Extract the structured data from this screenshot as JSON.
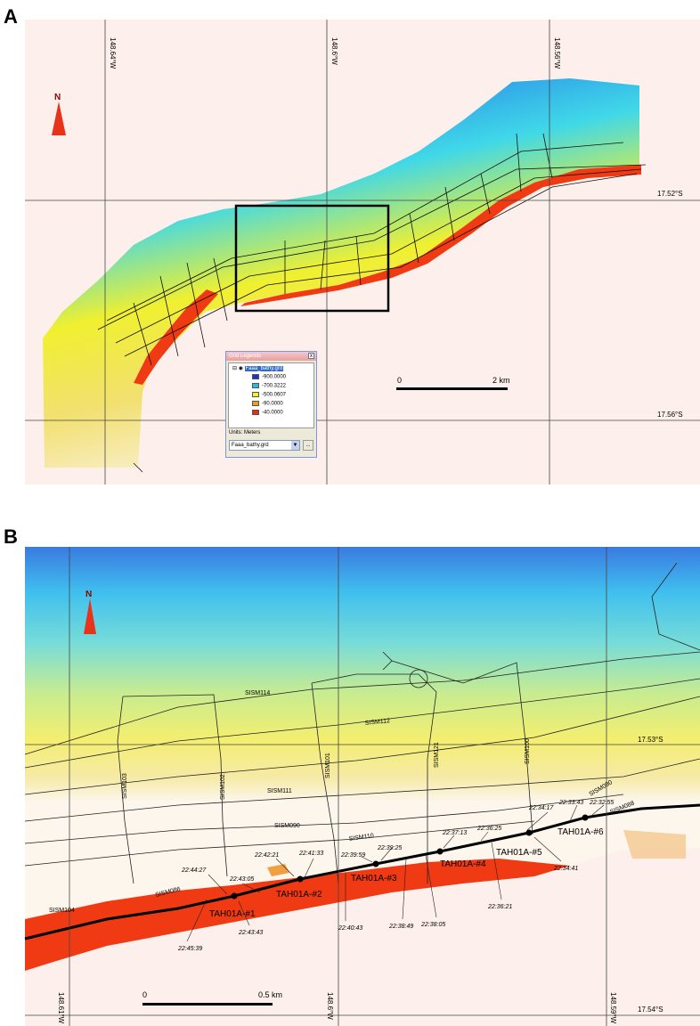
{
  "panel_a": {
    "letter": "A",
    "north_label": "N",
    "lon_labels": [
      "148.64°W",
      "148.6°W",
      "148.56°W"
    ],
    "lat_labels": [
      "17.52°S",
      "17.56°S"
    ],
    "scale_start": "0",
    "scale_end": "2 km",
    "legend": {
      "window_title": "Grid Legends",
      "layer_name": "Faaa_bathy.grd",
      "entries": [
        {
          "label": "-900.0000",
          "color": "#1e2fd8"
        },
        {
          "label": "-700.3222",
          "color": "#1fbfe8"
        },
        {
          "label": "-500.0607",
          "color": "#f2f22a"
        },
        {
          "label": "-90.0000",
          "color": "#f29a1a"
        },
        {
          "label": "-40.0000",
          "color": "#ef2a12"
        }
      ],
      "units": "Units: Meters",
      "select_value": "Faaa_bathy.grd",
      "select_arrow": "▼",
      "close_glyph": "x",
      "button_glyph": "..."
    }
  },
  "panel_b": {
    "letter": "B",
    "north_label": "N",
    "lon_labels": [
      "148.61°W",
      "148.6°W",
      "148.59°W"
    ],
    "lat_labels": [
      "17.53°S",
      "17.54°S"
    ],
    "scale_start": "0",
    "scale_end": "0.5 km",
    "line_labels": [
      "SISM114",
      "SISM112",
      "SISM111",
      "SISM090",
      "SISM110",
      "SISM088",
      "SISM086",
      "SISM104",
      "SISM103",
      "SISM102",
      "SISM101",
      "SISM121",
      "SISM100",
      "SISM090"
    ],
    "stations": [
      "TAH01A-#1",
      "TAH01A-#2",
      "TAH01A-#3",
      "TAH01A-#4",
      "TAH01A-#5",
      "TAH01A-#6"
    ],
    "times": [
      "22:45:39",
      "22:44:27",
      "22:43:05",
      "22:43:43",
      "22:42:21",
      "22:41:33",
      "22:40:43",
      "22:39:59",
      "22:39:25",
      "22:38:49",
      "22:38:05",
      "22:37:13",
      "22:36:25",
      "22:36:21",
      "22:34:41",
      "22:34:17",
      "22:33:43",
      "22:32:55"
    ]
  }
}
